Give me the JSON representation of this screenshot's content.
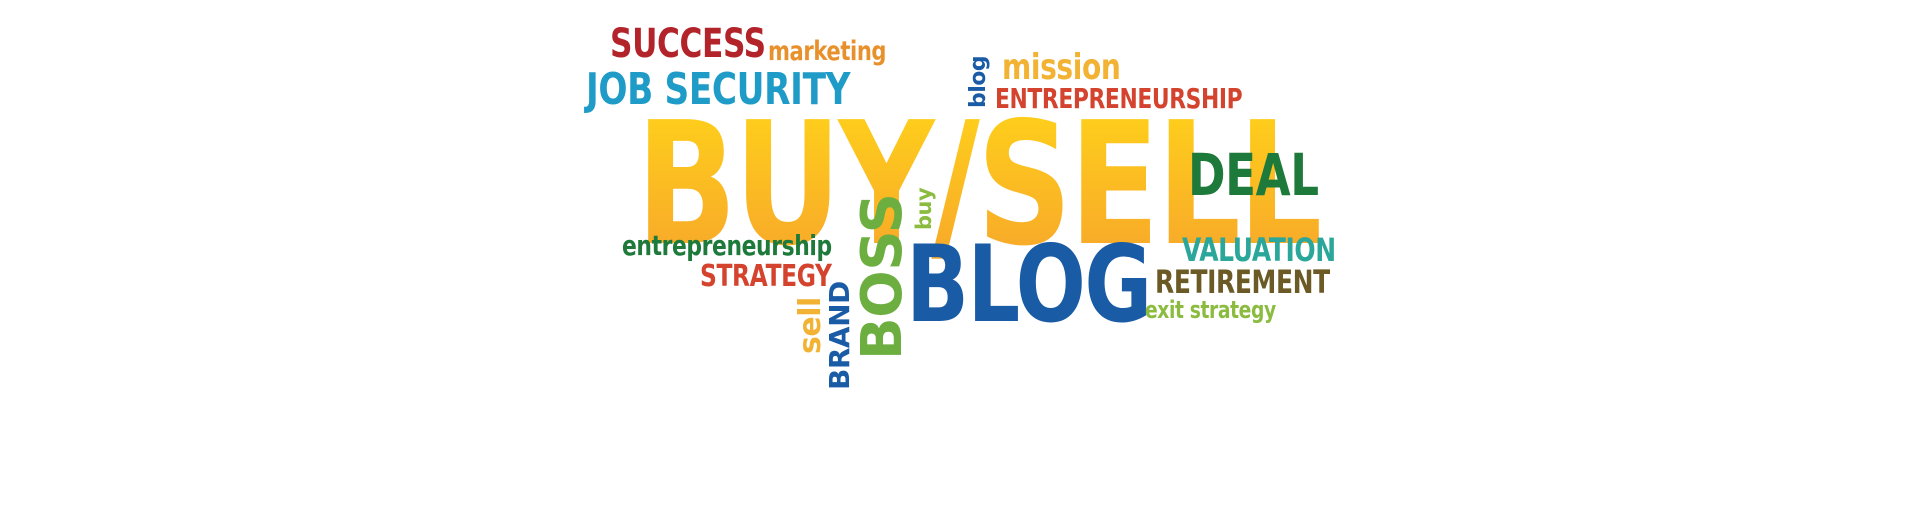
{
  "word_cloud": {
    "words": {
      "success": "SUCCESS",
      "marketing": "marketing",
      "job_security": "JOB SECURITY",
      "blog_small": "blog",
      "mission": "mission",
      "entrepreneurship_caps": "ENTREPRENEURSHIP",
      "buy_sell": "BUY/SELL",
      "deal": "DEAL",
      "buy_small": "buy",
      "entrepreneurship_lower": "entrepreneurship",
      "strategy": "STRATEGY",
      "boss": "BOSS",
      "blog_large": "BLOG",
      "valuation": "VALUATION",
      "retirement": "RETIREMENT",
      "exit_strategy": "exit strategy",
      "sell_small": "sell",
      "brand": "BRAND"
    },
    "colors": {
      "red": "#b3232a",
      "orange": "#e8902c",
      "cyan": "#1f9bc7",
      "navy": "#1a5ba6",
      "gold": "#f2b233",
      "vermilion": "#d4432d",
      "dark_green": "#1e7a3a",
      "light_green": "#8cbc3f",
      "teal": "#2aa79a",
      "olive_brown": "#6b5a25",
      "gradient_top": "#ffd21a",
      "gradient_bottom": "#f7a52b"
    }
  }
}
